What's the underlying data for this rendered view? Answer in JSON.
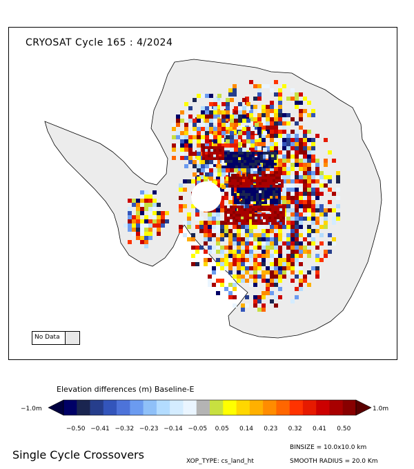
{
  "map": {
    "title": "CRYOSAT Cycle 165 : 4/2024",
    "no_data_label": "No Data",
    "no_data_color": "#e8e8e8",
    "continent_color": "#ececec"
  },
  "colorbar": {
    "title": "Elevation differences (m) Baseline-E",
    "left_label": "−1.0m",
    "right_label": "1.0m",
    "tick_labels": [
      "−0.50",
      "−0.41",
      "−0.32",
      "−0.23",
      "−0.14",
      "−0.05",
      "0.05",
      "0.14",
      "0.23",
      "0.32",
      "0.41",
      "0.50"
    ],
    "colors": [
      "#000066",
      "#1a2550",
      "#263e8c",
      "#3355bb",
      "#4d73d9",
      "#6b9bf0",
      "#8fc0f8",
      "#b3dcff",
      "#d4ecff",
      "#eaf5ff",
      "#b4b4b4",
      "#c8e040",
      "#ffff00",
      "#ffd700",
      "#ffb000",
      "#ff8c00",
      "#ff6600",
      "#ff3300",
      "#e61a00",
      "#cc0000",
      "#a80000",
      "#880000"
    ],
    "min_color": "#000040",
    "max_color": "#5a0000"
  },
  "footer": {
    "title": "Single Cycle Crossovers",
    "binsize": "BINSIZE = 10.0x10.0 km",
    "xop_type": "XOP_TYPE: cs_land_ht",
    "smooth_radius": "SMOOTH RADIUS = 20.0 Km"
  }
}
